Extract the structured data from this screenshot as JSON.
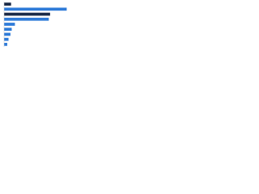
{
  "chart_data": {
    "type": "bar",
    "orientation": "horizontal",
    "categories": [
      null,
      null,
      null,
      null,
      null,
      null,
      null,
      null,
      null
    ],
    "values": [
      11,
      98,
      72,
      70,
      17,
      12,
      10,
      7,
      5
    ],
    "colors": [
      "#1b2a47",
      "#2f7bd8",
      "#1b2a47",
      "#2f7bd8",
      "#2f7bd8",
      "#2f7bd8",
      "#2f7bd8",
      "#2f7bd8",
      "#2f7bd8"
    ],
    "xlim": [
      0,
      100
    ]
  }
}
